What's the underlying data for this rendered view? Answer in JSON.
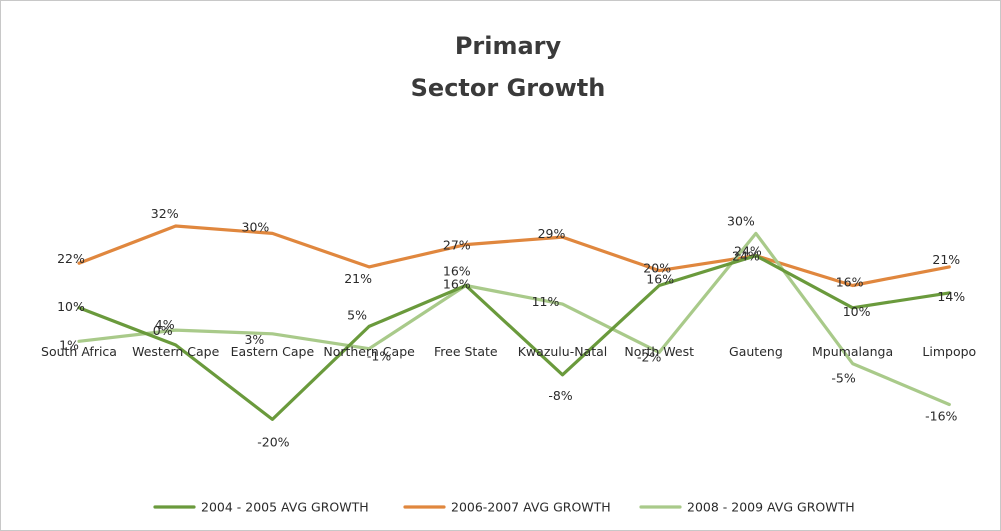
{
  "chart_data": {
    "type": "line",
    "title_lines": [
      "Primary",
      "Sector Growth"
    ],
    "categories": [
      "South Africa",
      "Western Cape",
      "Eastern Cape",
      "Northern Cape",
      "Free State",
      "Kwazulu-Natal",
      "North West",
      "Gauteng",
      "Mpumalanga",
      "Limpopo"
    ],
    "y_unit": "%",
    "ylim": [
      -25,
      35
    ],
    "grid": false,
    "legend_position": "bottom",
    "series": [
      {
        "name": "2004 - 2005 AVG GROWTH",
        "color": "#6a9a3c",
        "values": [
          10,
          0,
          -20,
          5,
          16,
          -8,
          16,
          24,
          10,
          14
        ]
      },
      {
        "name": "2006-2007 AVG GROWTH",
        "color": "#e0873e",
        "values": [
          22,
          32,
          30,
          21,
          27,
          29,
          20,
          24,
          16,
          21
        ]
      },
      {
        "name": "2008 - 2009 AVG GROWTH",
        "color": "#a9ca8a",
        "values": [
          1,
          4,
          3,
          -1,
          16,
          11,
          -2,
          30,
          -5,
          -16
        ]
      }
    ]
  }
}
